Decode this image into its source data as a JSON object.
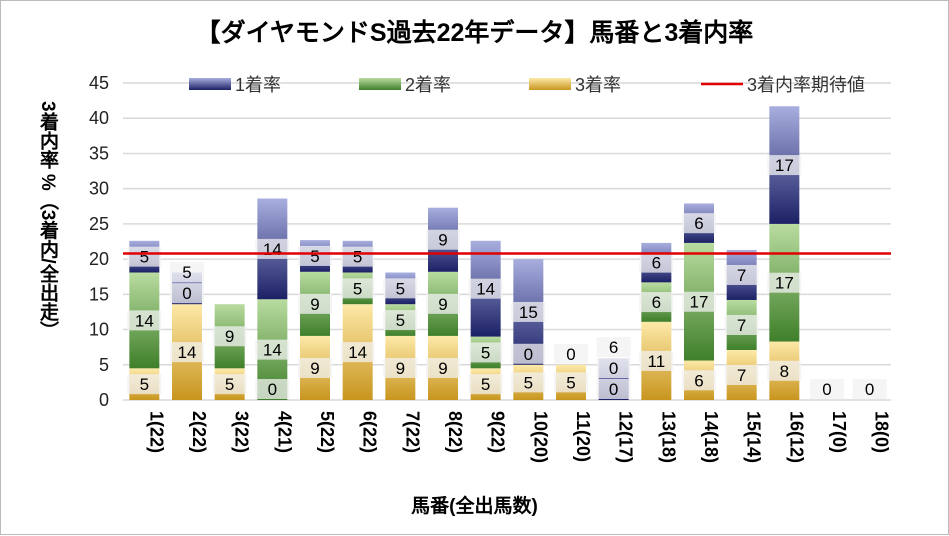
{
  "chart_data": {
    "type": "bar",
    "stacked": true,
    "title": "【ダイヤモンドS過去22年データ】馬番と3着内率",
    "xlabel": "馬番(全出馬数)",
    "ylabel": "3着内率 %（3着内/全出走）",
    "ylim": [
      0,
      45
    ],
    "yticks": [
      0,
      5,
      10,
      15,
      20,
      25,
      30,
      35,
      40,
      45
    ],
    "grid": true,
    "legend_position": "top",
    "categories": [
      "1(22)",
      "2(22)",
      "3(22)",
      "4(21)",
      "5(22)",
      "6(22)",
      "7(22)",
      "8(22)",
      "9(22)",
      "10(20)",
      "11(20)",
      "12(17)",
      "13(18)",
      "14(18)",
      "15(14)",
      "16(12)",
      "17(0)",
      "18(0)"
    ],
    "series": [
      {
        "name": "3着率",
        "color": "#d4a22a",
        "values": [
          4.5,
          13.6,
          4.5,
          0,
          9.1,
          13.6,
          9.1,
          9.1,
          4.5,
          5,
          5,
          0,
          11.1,
          5.6,
          7.1,
          8.3,
          0,
          0
        ],
        "labels": [
          5,
          14,
          5,
          0,
          9,
          14,
          9,
          9,
          5,
          5,
          5,
          0,
          11,
          6,
          7,
          8,
          0,
          0
        ]
      },
      {
        "name": "2着率",
        "color": "#5a9a3a",
        "values": [
          13.6,
          0,
          9.1,
          14.3,
          9.1,
          4.5,
          4.5,
          9.1,
          4.5,
          0,
          0,
          0,
          5.6,
          16.7,
          7.1,
          16.7,
          0,
          0
        ],
        "labels": [
          14,
          0,
          9,
          14,
          9,
          5,
          5,
          9,
          5,
          0,
          0,
          0,
          6,
          17,
          7,
          17,
          null,
          null
        ]
      },
      {
        "name": "1着率",
        "color": "#2e3380",
        "values": [
          4.5,
          4.5,
          0,
          14.3,
          4.5,
          4.5,
          4.5,
          9.1,
          13.6,
          15,
          0,
          5.9,
          5.6,
          5.6,
          7.1,
          16.7,
          0,
          0
        ],
        "labels": [
          5,
          5,
          null,
          14,
          5,
          5,
          5,
          9,
          14,
          15,
          null,
          6,
          6,
          6,
          7,
          17,
          null,
          null
        ]
      }
    ],
    "reference_line": {
      "name": "3着内率期待値",
      "value": 20.8,
      "color": "#e00000"
    }
  }
}
